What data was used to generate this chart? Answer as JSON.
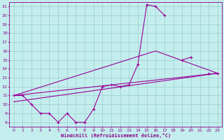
{
  "title": "",
  "xlabel": "Windchill (Refroidissement éolien,°C)",
  "ylabel": "",
  "bg_color": "#c4eeee",
  "line_color": "#990099",
  "grid_color": "#99cccc",
  "text_color": "#880088",
  "xlim": [
    -0.5,
    23.5
  ],
  "ylim": [
    7.5,
    21.5
  ],
  "xticks": [
    0,
    1,
    2,
    3,
    4,
    5,
    6,
    7,
    8,
    9,
    10,
    11,
    12,
    13,
    14,
    15,
    16,
    17,
    18,
    19,
    20,
    21,
    22,
    23
  ],
  "yticks": [
    8,
    9,
    10,
    11,
    12,
    13,
    14,
    15,
    16,
    17,
    18,
    19,
    20,
    21
  ],
  "series_main": {
    "x": [
      0,
      1,
      2,
      3,
      4,
      5,
      6,
      7,
      8,
      9,
      10,
      11,
      12,
      13,
      14,
      15,
      16,
      17,
      18,
      19,
      20,
      21,
      22,
      23
    ],
    "y": [
      11,
      11,
      10,
      9,
      9,
      8,
      9,
      8,
      8,
      9.5,
      12,
      12.2,
      12,
      12.2,
      14.5,
      21.2,
      21.0,
      20.0,
      null,
      15,
      15.3,
      null,
      13.5,
      13.5
    ]
  },
  "series_line1": {
    "x": [
      0,
      23
    ],
    "y": [
      11.0,
      13.5
    ]
  },
  "series_line2": {
    "x": [
      0,
      16,
      23
    ],
    "y": [
      11.0,
      16.0,
      13.5
    ]
  },
  "series_line3": {
    "x": [
      0,
      23
    ],
    "y": [
      10.3,
      13.5
    ]
  },
  "marker": "+",
  "markersize": 3,
  "markeredgewidth": 0.8,
  "linewidth": 0.8,
  "tick_fontsize": 4.5,
  "xlabel_fontsize": 5.0
}
